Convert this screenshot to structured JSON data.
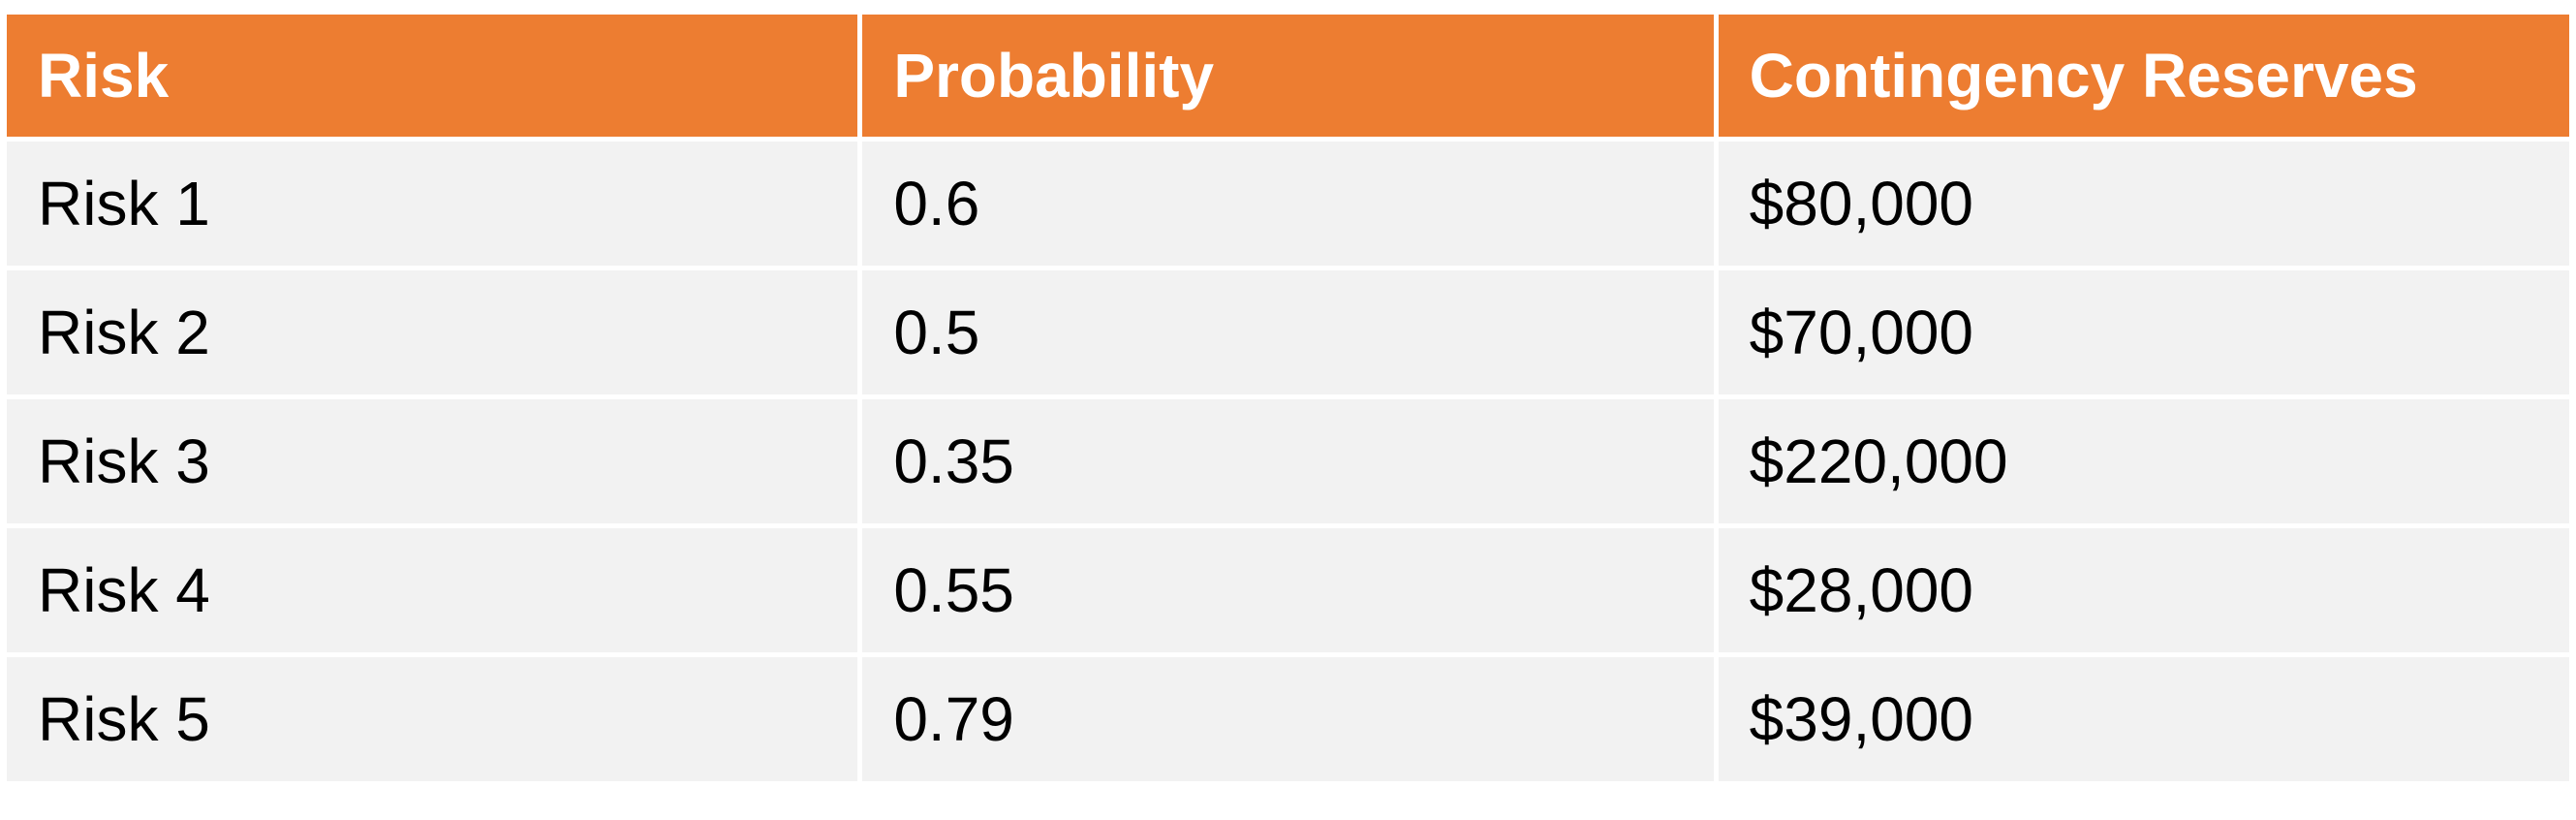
{
  "table": {
    "headers": [
      "Risk",
      "Probability",
      "Contingency Reserves"
    ],
    "rows": [
      [
        "Risk 1",
        "0.6",
        "$80,000"
      ],
      [
        "Risk 2",
        "0.5",
        "$70,000"
      ],
      [
        "Risk 3",
        "0.35",
        "$220,000"
      ],
      [
        "Risk 4",
        "0.55",
        "$28,000"
      ],
      [
        "Risk 5",
        "0.79",
        "$39,000"
      ]
    ]
  },
  "colors": {
    "header_bg": "#ED7D31",
    "header_text": "#FFFFFF",
    "row_bg": "#F2F2F2",
    "row_text": "#000000"
  }
}
